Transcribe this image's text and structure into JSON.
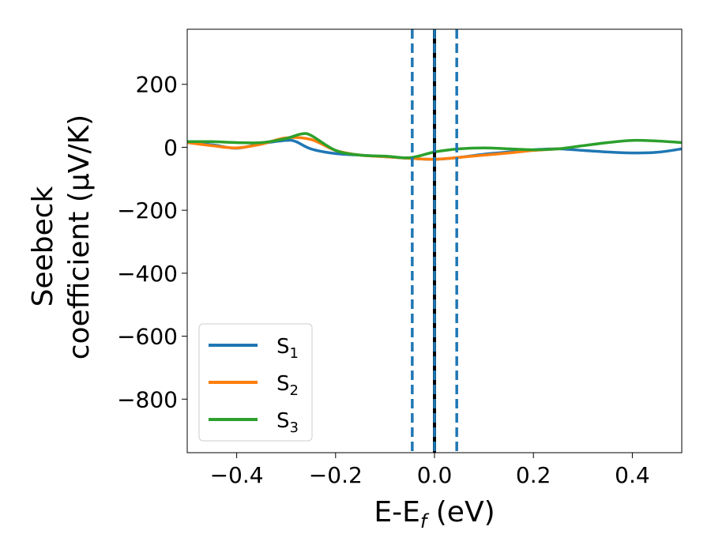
{
  "chart_data": {
    "type": "line",
    "xlabel": {
      "main": "E-E",
      "sub": "f",
      "suffix": " (eV)"
    },
    "ylabel": {
      "line1": "Seebeck",
      "line2": "coefficient  (μV/K)"
    },
    "xlim": [
      -0.5,
      0.5
    ],
    "ylim": [
      -970,
      375
    ],
    "xticks": [
      {
        "value": -0.4,
        "label": "−0.4"
      },
      {
        "value": -0.2,
        "label": "−0.2"
      },
      {
        "value": 0.0,
        "label": "0.0"
      },
      {
        "value": 0.2,
        "label": "0.2"
      },
      {
        "value": 0.4,
        "label": "0.4"
      }
    ],
    "yticks": [
      {
        "value": 200,
        "label": "200"
      },
      {
        "value": 0,
        "label": "0"
      },
      {
        "value": -200,
        "label": "−200"
      },
      {
        "value": -400,
        "label": "−400"
      },
      {
        "value": -600,
        "label": "−600"
      },
      {
        "value": -800,
        "label": "−800"
      }
    ],
    "grid": false,
    "legend_position": "lower-left",
    "vlines": [
      {
        "x": -0.045,
        "style": "dashed",
        "color": "#1f77b4"
      },
      {
        "x": 0.0,
        "style": "solid",
        "color": "#000000"
      },
      {
        "x": 0.0,
        "style": "dashed",
        "color": "#1f77b4"
      },
      {
        "x": 0.045,
        "style": "dashed",
        "color": "#1f77b4"
      }
    ],
    "series": [
      {
        "name": "S",
        "sub": "1",
        "color": "#1f77b4",
        "x": [
          -0.5,
          -0.45,
          -0.4,
          -0.35,
          -0.3,
          -0.28,
          -0.25,
          -0.2,
          -0.15,
          -0.1,
          -0.05,
          0.0,
          0.05,
          0.1,
          0.15,
          0.2,
          0.25,
          0.3,
          0.35,
          0.4,
          0.45,
          0.5
        ],
        "y": [
          15,
          8,
          -3,
          12,
          22,
          18,
          -5,
          -20,
          -25,
          -30,
          -35,
          -38,
          -32,
          -22,
          -15,
          -8,
          -5,
          -10,
          -15,
          -18,
          -16,
          -5
        ]
      },
      {
        "name": "S",
        "sub": "2",
        "color": "#ff7f0e",
        "x": [
          -0.5,
          -0.45,
          -0.4,
          -0.35,
          -0.3,
          -0.25,
          -0.2,
          -0.15,
          -0.1,
          -0.05,
          0.0,
          0.05,
          0.1,
          0.15,
          0.2,
          0.25
        ],
        "y": [
          15,
          5,
          -2,
          10,
          30,
          25,
          -10,
          -25,
          -30,
          -35,
          -38,
          -32,
          -25,
          -18,
          -10,
          -5
        ]
      },
      {
        "name": "S",
        "sub": "3",
        "color": "#2ca02c",
        "x": [
          -0.5,
          -0.45,
          -0.4,
          -0.35,
          -0.3,
          -0.27,
          -0.25,
          -0.2,
          -0.15,
          -0.1,
          -0.05,
          0.0,
          0.05,
          0.1,
          0.15,
          0.2,
          0.25,
          0.3,
          0.35,
          0.4,
          0.45,
          0.5
        ],
        "y": [
          18,
          18,
          15,
          15,
          28,
          42,
          38,
          -10,
          -25,
          -28,
          -33,
          -15,
          -5,
          -2,
          -5,
          -8,
          -5,
          5,
          15,
          22,
          20,
          15
        ]
      }
    ]
  }
}
